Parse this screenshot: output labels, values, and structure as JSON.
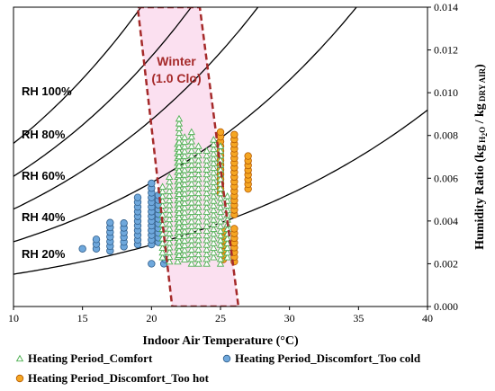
{
  "chart_data": {
    "type": "scatter",
    "xlabel": "Indoor Air Temperature (°C)",
    "ylabel": "Humidity Ratio (kg H2O / kg DRY AIR)",
    "ylabel_parts": {
      "main": "Humidity Ratio (kg",
      "sub1": "H",
      "sub2": "2",
      "sub3": "O",
      "mid": " / kg",
      "sub4": "DRY AIR",
      "end": ")"
    },
    "xlim": [
      10,
      40
    ],
    "ylim": [
      0,
      0.014
    ],
    "x_ticks": [
      10,
      15,
      20,
      25,
      30,
      35,
      40
    ],
    "y_ticks": [
      "0.000",
      "0.002",
      "0.004",
      "0.006",
      "0.008",
      "0.010",
      "0.012",
      "0.014"
    ],
    "y_tick_values": [
      0,
      0.002,
      0.004,
      0.006,
      0.008,
      0.01,
      0.012,
      0.014
    ],
    "rh_curves": [
      {
        "label": "RH 20%",
        "rh": 0.2
      },
      {
        "label": "RH 40%",
        "rh": 0.4
      },
      {
        "label": "RH 60%",
        "rh": 0.6
      },
      {
        "label": "RH 80%",
        "rh": 0.8
      },
      {
        "label": "RH 100%",
        "rh": 1.0
      }
    ],
    "comfort_zone": {
      "label_line1": "Winter",
      "label_line2": "(1.0 Clo)",
      "polygon": [
        [
          19.0,
          0.014
        ],
        [
          23.5,
          0.014
        ],
        [
          26.3,
          0.0
        ],
        [
          21.5,
          0.0
        ]
      ],
      "color": "#a52a2a",
      "fill": "#f7c6e4"
    },
    "series": [
      {
        "name": "Heating Period_Comfort",
        "marker": "triangle",
        "color": "#4caf50",
        "columns": [
          {
            "x": 20.8,
            "y_min": 0.0023,
            "y_max": 0.0058
          },
          {
            "x": 21.3,
            "y_min": 0.0021,
            "y_max": 0.0062
          },
          {
            "x": 21.9,
            "y_min": 0.0021,
            "y_max": 0.0078
          },
          {
            "x": 22.0,
            "y_min": 0.0024,
            "y_max": 0.0088
          },
          {
            "x": 22.4,
            "y_min": 0.0022,
            "y_max": 0.008
          },
          {
            "x": 22.9,
            "y_min": 0.002,
            "y_max": 0.0083
          },
          {
            "x": 23.4,
            "y_min": 0.002,
            "y_max": 0.0076
          },
          {
            "x": 24.0,
            "y_min": 0.002,
            "y_max": 0.0074
          },
          {
            "x": 24.5,
            "y_min": 0.0023,
            "y_max": 0.0078
          },
          {
            "x": 25.0,
            "y_min": 0.002,
            "y_max": 0.0075
          },
          {
            "x": 25.5,
            "y_min": 0.0023,
            "y_max": 0.0052
          }
        ]
      },
      {
        "name": "Heating Period_Discomfort_Too cold",
        "marker": "circle",
        "color": "#6fa8dc",
        "columns": [
          {
            "x": 15.0,
            "y_min": 0.0027,
            "y_max": 0.0029
          },
          {
            "x": 16.0,
            "y_min": 0.0027,
            "y_max": 0.0033
          },
          {
            "x": 17.0,
            "y_min": 0.0026,
            "y_max": 0.004
          },
          {
            "x": 18.0,
            "y_min": 0.0028,
            "y_max": 0.0041
          },
          {
            "x": 19.0,
            "y_min": 0.0029,
            "y_max": 0.0051
          },
          {
            "x": 20.0,
            "y_min": 0.0029,
            "y_max": 0.0058
          },
          {
            "x": 20.5,
            "y_min": 0.003,
            "y_max": 0.0054
          }
        ],
        "extra_points": [
          [
            20.0,
            0.002
          ],
          [
            20.9,
            0.002
          ],
          [
            21.0,
            0.0022
          ]
        ]
      },
      {
        "name": "Heating Period_Discomfort_Too hot",
        "marker": "circle",
        "color": "#f5a623",
        "columns": [
          {
            "x": 25.0,
            "y_min": 0.0053,
            "y_max": 0.0082
          },
          {
            "x": 25.2,
            "y_min": 0.0022,
            "y_max": 0.0037
          },
          {
            "x": 26.0,
            "y_min": 0.0043,
            "y_max": 0.0082
          },
          {
            "x": 26.0,
            "y_min": 0.0021,
            "y_max": 0.0037
          },
          {
            "x": 27.0,
            "y_min": 0.0055,
            "y_max": 0.0071
          }
        ]
      }
    ],
    "legend": [
      {
        "label": "Heating Period_Comfort",
        "marker": "triangle",
        "color": "#4caf50"
      },
      {
        "label": "Heating Period_Discomfort_Too cold",
        "marker": "circle",
        "color": "#6fa8dc"
      },
      {
        "label": "Heating Period_Discomfort_Too hot",
        "marker": "circle",
        "color": "#f5a623"
      }
    ]
  }
}
